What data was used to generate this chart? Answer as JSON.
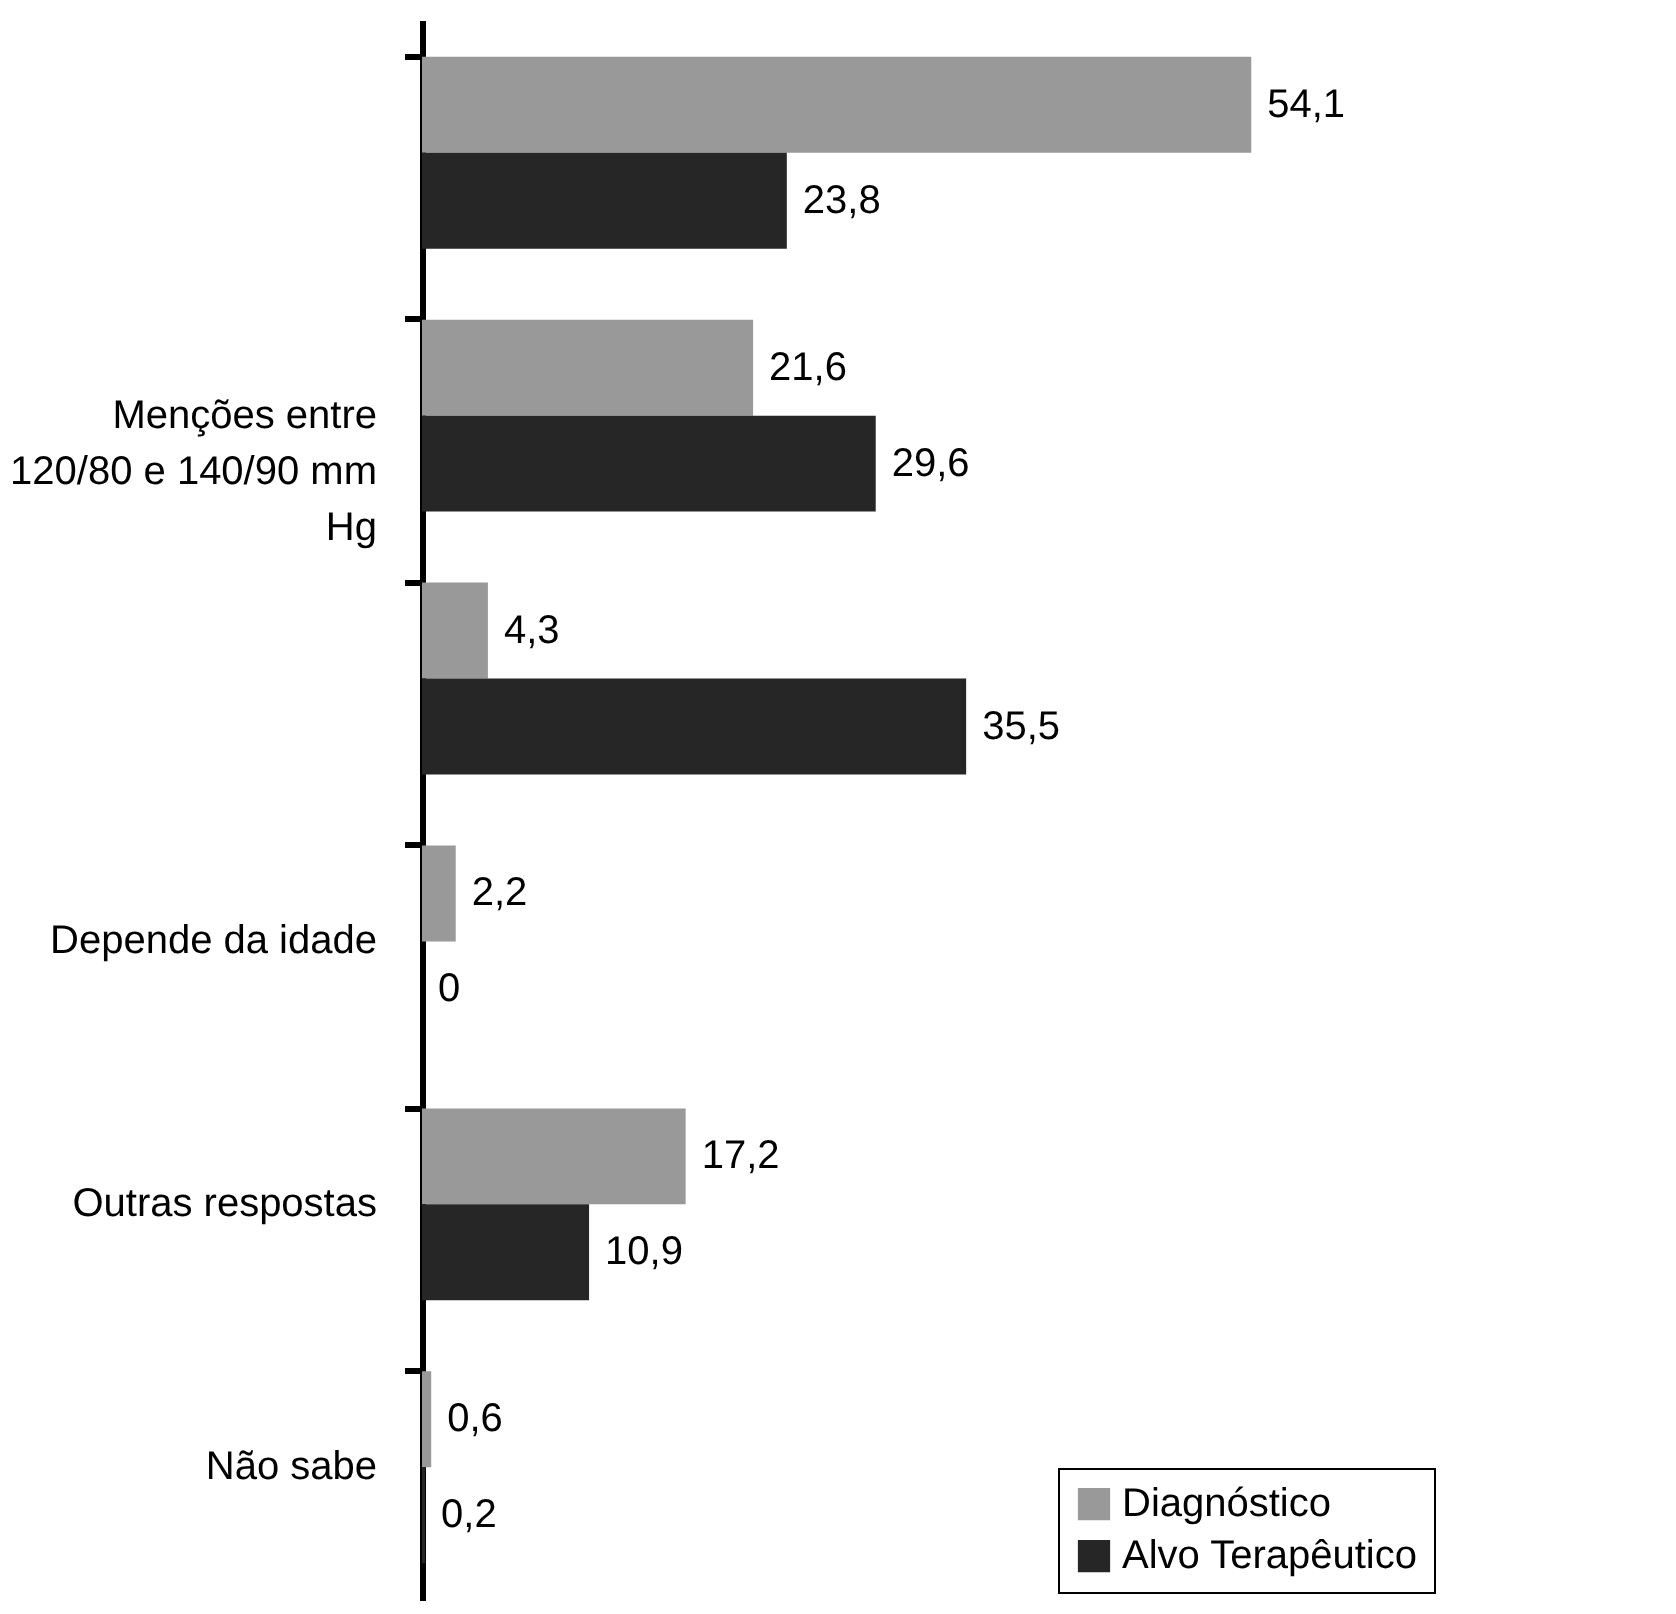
{
  "chart_data": {
    "type": "bar",
    "orientation": "horizontal",
    "categories": [
      null,
      "Menções entre 120/80 e 140/90 mm Hg",
      null,
      "Depende da idade",
      "Outras respostas",
      "Não sabe"
    ],
    "series": [
      {
        "name": "Diagnóstico",
        "color": "#999999",
        "values": [
          54.1,
          21.6,
          4.3,
          2.2,
          17.2,
          0.6
        ],
        "value_labels": [
          "54,1",
          "21,6",
          "4,3",
          "2,2",
          "17,2",
          "0,6"
        ]
      },
      {
        "name": "Alvo Terapêutico",
        "color": "#262626",
        "values": [
          23.8,
          29.6,
          35.5,
          0,
          10.9,
          0.2
        ],
        "value_labels": [
          "23,8",
          "29,6",
          "35,5",
          "0",
          "10,9",
          "0,2"
        ]
      }
    ],
    "legend": "bottom right",
    "tick_labels": "y"
  }
}
